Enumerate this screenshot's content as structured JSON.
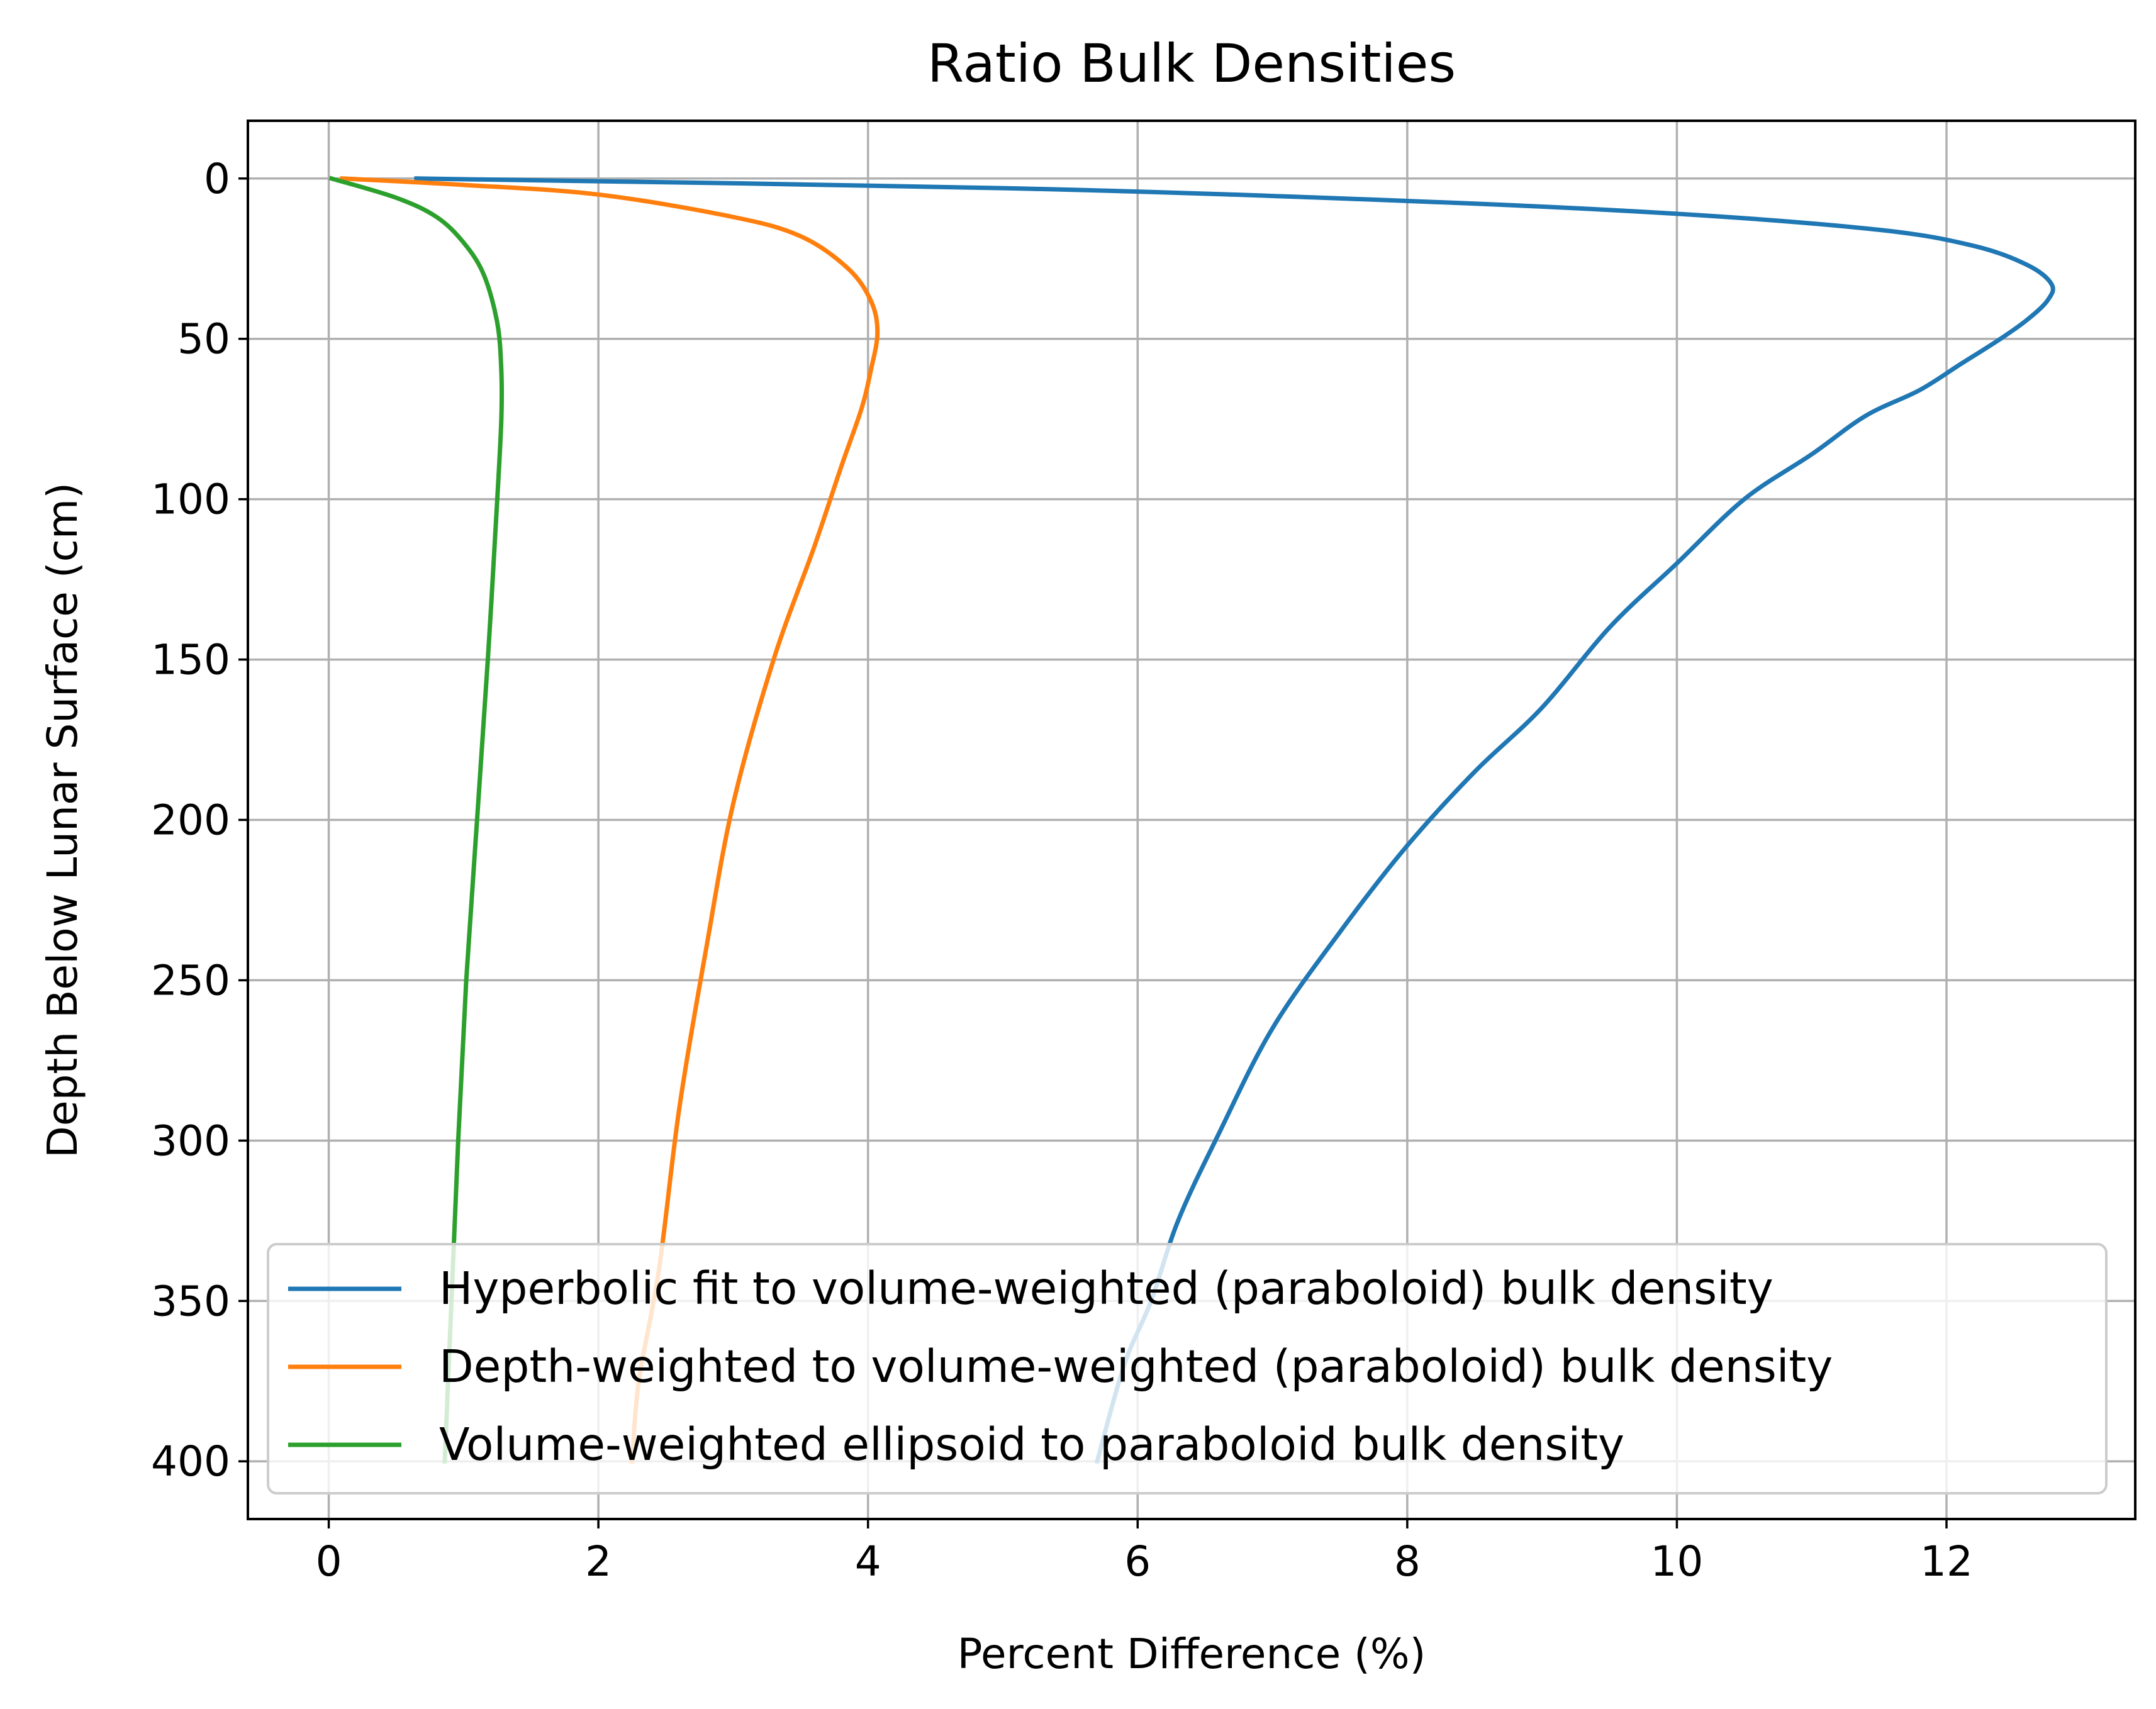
{
  "colors": {
    "series": [
      "#1f77b4",
      "#ff7f0e",
      "#2ca02c"
    ],
    "grid": "#b0b0b0",
    "axes": "#000000",
    "background": "#ffffff",
    "legend_border": "#cccccc"
  },
  "chart_data": {
    "type": "line",
    "title": "Ratio Bulk Densities",
    "xlabel": "Percent Difference (%)",
    "ylabel": "Depth Below Lunar Surface (cm)",
    "xlim": [
      -0.6,
      13.4
    ],
    "ylim": [
      418,
      -18
    ],
    "y_inverted": true,
    "grid": true,
    "legend_position": "lower-right",
    "xticks": [
      0,
      2,
      4,
      6,
      8,
      10,
      12
    ],
    "xtick_labels": [
      "0",
      "2",
      "4",
      "6",
      "8",
      "10",
      "12"
    ],
    "yticks": [
      0,
      50,
      100,
      150,
      200,
      250,
      300,
      350,
      400
    ],
    "ytick_labels": [
      "0",
      "50",
      "100",
      "150",
      "200",
      "250",
      "300",
      "350",
      "400"
    ],
    "series": [
      {
        "name": "Hyperbolic fit to volume-weighted (paraboloid) bulk density",
        "points": [
          [
            0.65,
            0
          ],
          [
            5,
            3
          ],
          [
            8,
            7
          ],
          [
            10,
            11
          ],
          [
            11.5,
            16
          ],
          [
            12.2,
            21
          ],
          [
            12.6,
            27
          ],
          [
            12.78,
            33
          ],
          [
            12.75,
            38
          ],
          [
            12.6,
            44
          ],
          [
            12.4,
            50
          ],
          [
            12.1,
            58
          ],
          [
            11.8,
            66
          ],
          [
            11.4,
            74
          ],
          [
            11,
            86
          ],
          [
            10.5,
            100
          ],
          [
            10,
            120
          ],
          [
            9.5,
            140
          ],
          [
            9,
            165
          ],
          [
            8.5,
            185
          ],
          [
            8,
            208
          ],
          [
            7.5,
            235
          ],
          [
            7,
            265
          ],
          [
            6.6,
            298
          ],
          [
            6.3,
            325
          ],
          [
            6.1,
            350
          ],
          [
            5.9,
            370
          ],
          [
            5.7,
            400
          ]
        ]
      },
      {
        "name": "Depth-weighted to volume-weighted (paraboloid) bulk density",
        "points": [
          [
            0.1,
            0
          ],
          [
            1,
            2
          ],
          [
            2,
            5
          ],
          [
            3,
            12
          ],
          [
            3.5,
            18
          ],
          [
            3.85,
            28
          ],
          [
            4.02,
            38
          ],
          [
            4.07,
            48
          ],
          [
            4.02,
            60
          ],
          [
            3.95,
            72
          ],
          [
            3.8,
            90
          ],
          [
            3.6,
            115
          ],
          [
            3.3,
            150
          ],
          [
            3,
            195
          ],
          [
            2.8,
            240
          ],
          [
            2.6,
            290
          ],
          [
            2.45,
            340
          ],
          [
            2.3,
            375
          ],
          [
            2.25,
            400
          ]
        ]
      },
      {
        "name": "Volume-weighted ellipsoid to paraboloid bulk density",
        "points": [
          [
            0.02,
            0
          ],
          [
            0.5,
            6
          ],
          [
            0.8,
            12
          ],
          [
            1,
            20
          ],
          [
            1.15,
            30
          ],
          [
            1.25,
            45
          ],
          [
            1.28,
            60
          ],
          [
            1.28,
            75
          ],
          [
            1.25,
            100
          ],
          [
            1.18,
            150
          ],
          [
            1.1,
            200
          ],
          [
            1.02,
            250
          ],
          [
            0.96,
            300
          ],
          [
            0.91,
            350
          ],
          [
            0.86,
            400
          ]
        ]
      }
    ]
  }
}
